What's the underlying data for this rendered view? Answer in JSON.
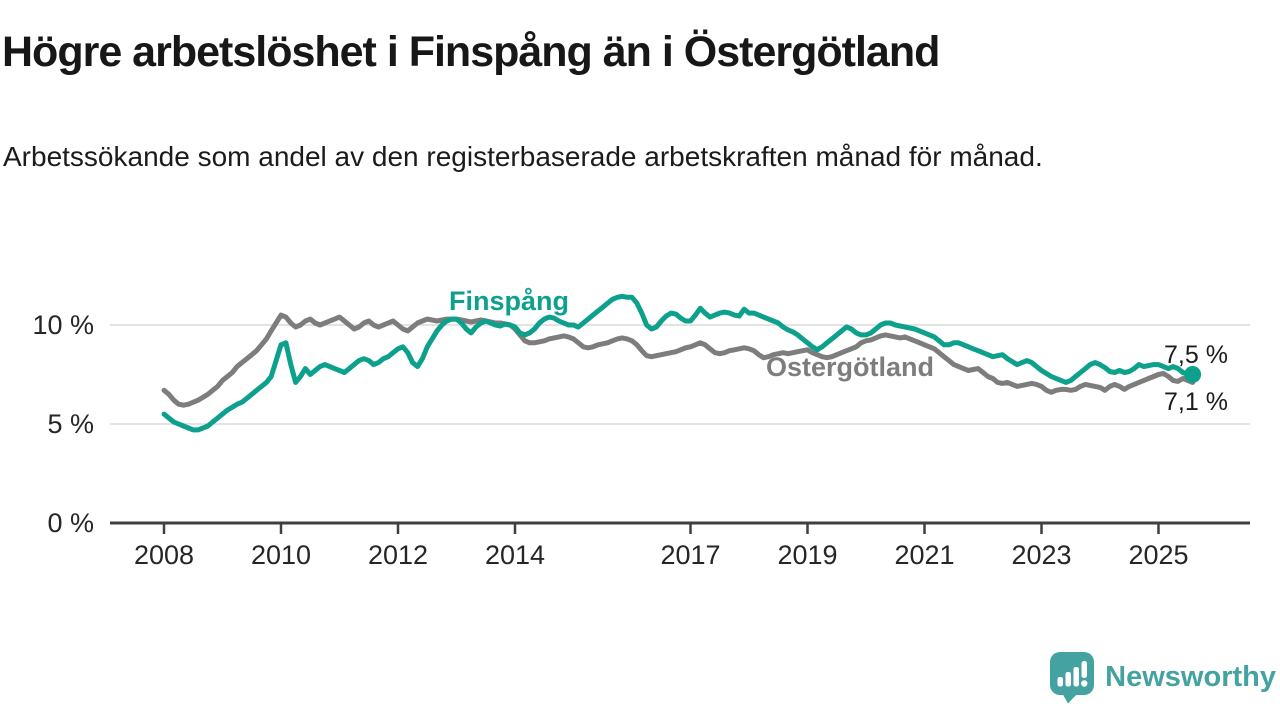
{
  "chart_data": {
    "type": "line",
    "title": "Högre arbetslöshet i Finspång än i Östergötland",
    "subtitle": "Arbetssökande som andel av den registerbaserade arbetskraften månad för månad.",
    "unit_suffix": " %",
    "grid": "horizontal",
    "ylim": [
      0,
      12
    ],
    "x_range": {
      "start_year": 2008,
      "start_month": 1,
      "points_per_year": 12,
      "end_label_period": "2025-08"
    },
    "y_ticks": [
      {
        "value": 0,
        "label": "0 %"
      },
      {
        "value": 5,
        "label": "5 %"
      },
      {
        "value": 10,
        "label": "10 %"
      }
    ],
    "x_ticks": [
      {
        "year": 2008,
        "label": "2008"
      },
      {
        "year": 2010,
        "label": "2010"
      },
      {
        "year": 2012,
        "label": "2012"
      },
      {
        "year": 2014,
        "label": "2014"
      },
      {
        "year": 2017,
        "label": "2017"
      },
      {
        "year": 2019,
        "label": "2019"
      },
      {
        "year": 2021,
        "label": "2021"
      },
      {
        "year": 2023,
        "label": "2023"
      },
      {
        "year": 2025,
        "label": "2025"
      }
    ],
    "series": [
      {
        "name": "Östergötland",
        "color": "#7d7d7d",
        "end_label": "7,1 %",
        "end_dot": false,
        "values": [
          6.7,
          6.5,
          6.2,
          6.0,
          5.95,
          6.0,
          6.1,
          6.2,
          6.35,
          6.5,
          6.7,
          6.9,
          7.2,
          7.4,
          7.6,
          7.9,
          8.1,
          8.3,
          8.5,
          8.7,
          9.0,
          9.3,
          9.7,
          10.1,
          10.5,
          10.4,
          10.1,
          9.9,
          10.0,
          10.2,
          10.3,
          10.1,
          10.0,
          10.1,
          10.2,
          10.3,
          10.4,
          10.2,
          10.0,
          9.8,
          9.9,
          10.1,
          10.2,
          10.0,
          9.9,
          10.0,
          10.1,
          10.2,
          10.0,
          9.8,
          9.7,
          9.9,
          10.1,
          10.2,
          10.3,
          10.25,
          10.2,
          10.25,
          10.3,
          10.3,
          10.3,
          10.25,
          10.2,
          10.15,
          10.2,
          10.25,
          10.2,
          10.15,
          10.1,
          10.1,
          10.05,
          10.0,
          9.8,
          9.5,
          9.2,
          9.1,
          9.1,
          9.15,
          9.2,
          9.3,
          9.35,
          9.4,
          9.45,
          9.4,
          9.3,
          9.1,
          8.9,
          8.85,
          8.9,
          9.0,
          9.05,
          9.1,
          9.2,
          9.3,
          9.35,
          9.3,
          9.2,
          9.0,
          8.7,
          8.45,
          8.4,
          8.45,
          8.5,
          8.55,
          8.6,
          8.65,
          8.75,
          8.85,
          8.9,
          9.0,
          9.1,
          9.0,
          8.8,
          8.6,
          8.55,
          8.6,
          8.7,
          8.75,
          8.8,
          8.85,
          8.8,
          8.7,
          8.5,
          8.35,
          8.4,
          8.5,
          8.55,
          8.6,
          8.55,
          8.6,
          8.65,
          8.7,
          8.75,
          8.6,
          8.5,
          8.4,
          8.35,
          8.4,
          8.5,
          8.6,
          8.7,
          8.8,
          8.9,
          9.1,
          9.2,
          9.25,
          9.35,
          9.45,
          9.5,
          9.45,
          9.4,
          9.35,
          9.4,
          9.3,
          9.2,
          9.1,
          9.0,
          8.9,
          8.8,
          8.6,
          8.4,
          8.2,
          8.0,
          7.9,
          7.8,
          7.7,
          7.75,
          7.8,
          7.6,
          7.4,
          7.3,
          7.1,
          7.05,
          7.1,
          7.0,
          6.9,
          6.95,
          7.0,
          7.05,
          7.0,
          6.9,
          6.7,
          6.6,
          6.7,
          6.75,
          6.75,
          6.7,
          6.75,
          6.9,
          7.0,
          6.95,
          6.9,
          6.85,
          6.7,
          6.9,
          7.0,
          6.9,
          6.75,
          6.9,
          7.0,
          7.1,
          7.2,
          7.3,
          7.4,
          7.5,
          7.55,
          7.4,
          7.2,
          7.15,
          7.3,
          7.2,
          7.1
        ]
      },
      {
        "name": "Finspång",
        "color": "#0ca08d",
        "end_label": "7,5 %",
        "end_dot": true,
        "values": [
          5.5,
          5.3,
          5.1,
          5.0,
          4.9,
          4.8,
          4.7,
          4.7,
          4.8,
          4.9,
          5.1,
          5.3,
          5.5,
          5.7,
          5.85,
          6.0,
          6.1,
          6.3,
          6.5,
          6.7,
          6.9,
          7.1,
          7.4,
          8.2,
          9.0,
          9.1,
          8.0,
          7.1,
          7.4,
          7.8,
          7.5,
          7.7,
          7.9,
          8.0,
          7.9,
          7.8,
          7.7,
          7.6,
          7.8,
          8.0,
          8.2,
          8.3,
          8.2,
          8.0,
          8.1,
          8.3,
          8.4,
          8.6,
          8.8,
          8.9,
          8.6,
          8.1,
          7.9,
          8.3,
          8.9,
          9.3,
          9.7,
          10.0,
          10.2,
          10.3,
          10.3,
          10.1,
          9.8,
          9.6,
          9.9,
          10.1,
          10.2,
          10.1,
          10.0,
          9.95,
          10.05,
          10.0,
          9.9,
          9.6,
          9.5,
          9.6,
          9.8,
          10.1,
          10.3,
          10.4,
          10.35,
          10.2,
          10.1,
          10.0,
          10.0,
          9.9,
          10.1,
          10.3,
          10.5,
          10.7,
          10.9,
          11.1,
          11.3,
          11.4,
          11.45,
          11.4,
          11.4,
          11.1,
          10.6,
          10.0,
          9.8,
          9.9,
          10.2,
          10.45,
          10.6,
          10.55,
          10.35,
          10.2,
          10.2,
          10.5,
          10.85,
          10.6,
          10.4,
          10.5,
          10.6,
          10.65,
          10.6,
          10.5,
          10.45,
          10.8,
          10.6,
          10.6,
          10.5,
          10.4,
          10.3,
          10.2,
          10.1,
          9.9,
          9.75,
          9.65,
          9.5,
          9.3,
          9.1,
          8.9,
          8.75,
          8.9,
          9.1,
          9.3,
          9.5,
          9.7,
          9.9,
          9.8,
          9.6,
          9.5,
          9.5,
          9.6,
          9.8,
          10.0,
          10.1,
          10.1,
          10.0,
          9.95,
          9.9,
          9.85,
          9.8,
          9.7,
          9.6,
          9.5,
          9.4,
          9.2,
          9.0,
          9.0,
          9.1,
          9.1,
          9.0,
          8.9,
          8.8,
          8.7,
          8.6,
          8.5,
          8.4,
          8.45,
          8.5,
          8.3,
          8.15,
          8.0,
          8.1,
          8.2,
          8.1,
          7.9,
          7.7,
          7.55,
          7.4,
          7.3,
          7.2,
          7.1,
          7.2,
          7.4,
          7.6,
          7.8,
          8.0,
          8.1,
          8.0,
          7.85,
          7.65,
          7.6,
          7.7,
          7.6,
          7.65,
          7.8,
          8.0,
          7.9,
          7.95,
          8.0,
          8.0,
          7.9,
          7.8,
          7.9,
          7.8,
          7.6,
          7.5,
          7.5
        ]
      }
    ]
  },
  "branding": {
    "name": "Newsworthy",
    "color": "#44a3a0",
    "icon": "speech-bubble-bar-chart"
  },
  "colors": {
    "grid": "#e3e3e3",
    "axis": "#3f3f3f",
    "tick_text": "#262626",
    "value_label_text": "#1c1c1c",
    "background": "#ffffff"
  }
}
